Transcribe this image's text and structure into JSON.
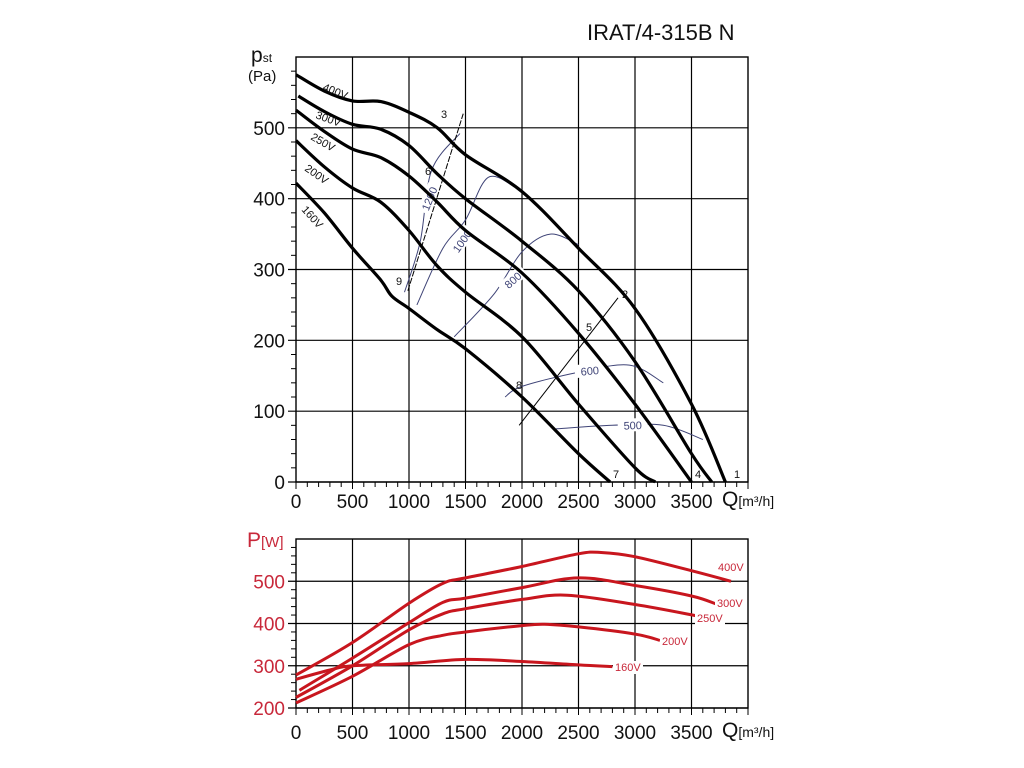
{
  "title": "IRAT/4-315B N",
  "chart_data": [
    {
      "type": "line",
      "name": "pressure-chart",
      "title": "IRAT/4-315B N",
      "ylabel_main": "p",
      "ylabel_sub": "st",
      "yunit": "(Pa)",
      "xlabel_main": "Q",
      "xlabel_unit": "[m³/h]",
      "xlim": [
        0,
        4000
      ],
      "ylim": [
        0,
        600
      ],
      "x_ticks": [
        0,
        500,
        1000,
        1500,
        2000,
        2500,
        3000,
        3500
      ],
      "x_tick_labels": [
        "0",
        "500",
        "1000",
        "1500",
        "2000",
        "2500",
        "3000",
        "3500"
      ],
      "y_ticks": [
        0,
        100,
        200,
        300,
        400,
        500
      ],
      "y_tick_labels": [
        "0",
        "100",
        "200",
        "300",
        "400",
        "500"
      ],
      "grid": true,
      "series": [
        {
          "name": "400V",
          "label": "400V",
          "points": [
            [
              0,
              575
            ],
            [
              250,
              552
            ],
            [
              500,
              538
            ],
            [
              750,
              537
            ],
            [
              1000,
              522
            ],
            [
              1250,
              500
            ],
            [
              1500,
              462
            ],
            [
              2000,
              410
            ],
            [
              2500,
              330
            ],
            [
              3000,
              245
            ],
            [
              3500,
              110
            ],
            [
              3800,
              0
            ]
          ]
        },
        {
          "name": "300V",
          "label": "300V",
          "points": [
            [
              20,
              545
            ],
            [
              250,
              523
            ],
            [
              500,
              505
            ],
            [
              750,
              498
            ],
            [
              1000,
              475
            ],
            [
              1250,
              435
            ],
            [
              1500,
              400
            ],
            [
              2000,
              340
            ],
            [
              2500,
              270
            ],
            [
              3000,
              170
            ],
            [
              3500,
              40
            ],
            [
              3680,
              0
            ]
          ]
        },
        {
          "name": "250V",
          "label": "250V",
          "points": [
            [
              0,
              525
            ],
            [
              250,
              495
            ],
            [
              500,
              470
            ],
            [
              750,
              458
            ],
            [
              1000,
              432
            ],
            [
              1250,
              395
            ],
            [
              1500,
              355
            ],
            [
              2000,
              295
            ],
            [
              2500,
              210
            ],
            [
              3000,
              110
            ],
            [
              3500,
              0
            ]
          ]
        },
        {
          "name": "200V",
          "label": "200V",
          "points": [
            [
              0,
              482
            ],
            [
              250,
              445
            ],
            [
              500,
              415
            ],
            [
              750,
              395
            ],
            [
              1000,
              355
            ],
            [
              1250,
              305
            ],
            [
              1500,
              268
            ],
            [
              2000,
              205
            ],
            [
              2500,
              110
            ],
            [
              3000,
              20
            ],
            [
              3180,
              0
            ]
          ]
        },
        {
          "name": "160V",
          "label": "160V",
          "points": [
            [
              0,
              422
            ],
            [
              250,
              380
            ],
            [
              500,
              330
            ],
            [
              750,
              285
            ],
            [
              850,
              262
            ],
            [
              1000,
              245
            ],
            [
              1250,
              215
            ],
            [
              1500,
              188
            ],
            [
              2000,
              120
            ],
            [
              2500,
              40
            ],
            [
              2780,
              0
            ]
          ]
        }
      ],
      "rpm_isolines": [
        {
          "label": "1200",
          "points": [
            [
              960,
              268
            ],
            [
              1100,
              340
            ],
            [
              1200,
              440
            ],
            [
              1450,
              492
            ]
          ]
        },
        {
          "label": "1000",
          "points": [
            [
              1070,
              250
            ],
            [
              1300,
              330
            ],
            [
              1500,
              370
            ],
            [
              1700,
              430
            ],
            [
              1950,
              415
            ]
          ]
        },
        {
          "label": "800",
          "points": [
            [
              1400,
              205
            ],
            [
              1750,
              265
            ],
            [
              2000,
              325
            ],
            [
              2250,
              350
            ],
            [
              2500,
              335
            ]
          ]
        },
        {
          "label": "600",
          "points": [
            [
              1850,
              120
            ],
            [
              2000,
              135
            ],
            [
              2500,
              155
            ],
            [
              2950,
              165
            ],
            [
              3250,
              140
            ]
          ]
        },
        {
          "label": "500",
          "points": [
            [
              2300,
              75
            ],
            [
              2800,
              80
            ],
            [
              3250,
              80
            ],
            [
              3600,
              60
            ]
          ]
        }
      ],
      "operating_lines": [
        {
          "points": [
            [
              990,
              270
            ],
            [
              1480,
              520
            ]
          ],
          "dashed": true
        },
        {
          "points": [
            [
              1975,
              80
            ],
            [
              2850,
              260
            ]
          ],
          "dashed": false
        }
      ],
      "point_labels": [
        "1",
        "2",
        "3",
        "4",
        "5",
        "6",
        "7",
        "8",
        "9"
      ]
    },
    {
      "type": "line",
      "name": "power-chart",
      "ylabel_main": "P",
      "yunit": "[W]",
      "xlabel_main": "Q",
      "xlabel_unit": "[m³/h]",
      "xlim": [
        0,
        4000
      ],
      "ylim": [
        200,
        600
      ],
      "x_ticks": [
        0,
        500,
        1000,
        1500,
        2000,
        2500,
        3000,
        3500
      ],
      "x_tick_labels": [
        "0",
        "500",
        "1000",
        "1500",
        "2000",
        "2500",
        "3000",
        "3500"
      ],
      "y_ticks": [
        200,
        300,
        400,
        500
      ],
      "y_tick_labels": [
        "200",
        "300",
        "400",
        "500"
      ],
      "grid": true,
      "series": [
        {
          "name": "400V",
          "label": "400V",
          "points": [
            [
              0,
              278
            ],
            [
              500,
              355
            ],
            [
              1000,
              448
            ],
            [
              1300,
              495
            ],
            [
              1500,
              508
            ],
            [
              2000,
              535
            ],
            [
              2500,
              565
            ],
            [
              2700,
              568
            ],
            [
              3000,
              558
            ],
            [
              3500,
              525
            ],
            [
              3850,
              500
            ]
          ]
        },
        {
          "name": "300V",
          "label": "300V",
          "points": [
            [
              30,
              242
            ],
            [
              500,
              318
            ],
            [
              1000,
              402
            ],
            [
              1300,
              450
            ],
            [
              1500,
              460
            ],
            [
              2000,
              485
            ],
            [
              2500,
              508
            ],
            [
              3000,
              490
            ],
            [
              3500,
              465
            ],
            [
              3720,
              446
            ]
          ]
        },
        {
          "name": "250V",
          "label": "250V",
          "points": [
            [
              0,
              225
            ],
            [
              500,
              300
            ],
            [
              1000,
              385
            ],
            [
              1300,
              423
            ],
            [
              1500,
              435
            ],
            [
              2000,
              457
            ],
            [
              2400,
              467
            ],
            [
              3000,
              445
            ],
            [
              3550,
              418
            ]
          ]
        },
        {
          "name": "200V",
          "label": "200V",
          "points": [
            [
              0,
              212
            ],
            [
              500,
              275
            ],
            [
              1000,
              350
            ],
            [
              1300,
              372
            ],
            [
              1500,
              380
            ],
            [
              2000,
              395
            ],
            [
              2200,
              398
            ],
            [
              2500,
              392
            ],
            [
              3000,
              375
            ],
            [
              3220,
              360
            ]
          ]
        },
        {
          "name": "160V",
          "label": "160V",
          "points": [
            [
              0,
              268
            ],
            [
              300,
              290
            ],
            [
              500,
              300
            ],
            [
              1000,
              305
            ],
            [
              1500,
              315
            ],
            [
              2000,
              310
            ],
            [
              2500,
              302
            ],
            [
              2800,
              298
            ]
          ]
        }
      ]
    }
  ],
  "colors": {
    "pressure_curve": "#000000",
    "power_curve": "#c8161e",
    "power_text": "#c8283a",
    "isoline": "#3f4477"
  }
}
